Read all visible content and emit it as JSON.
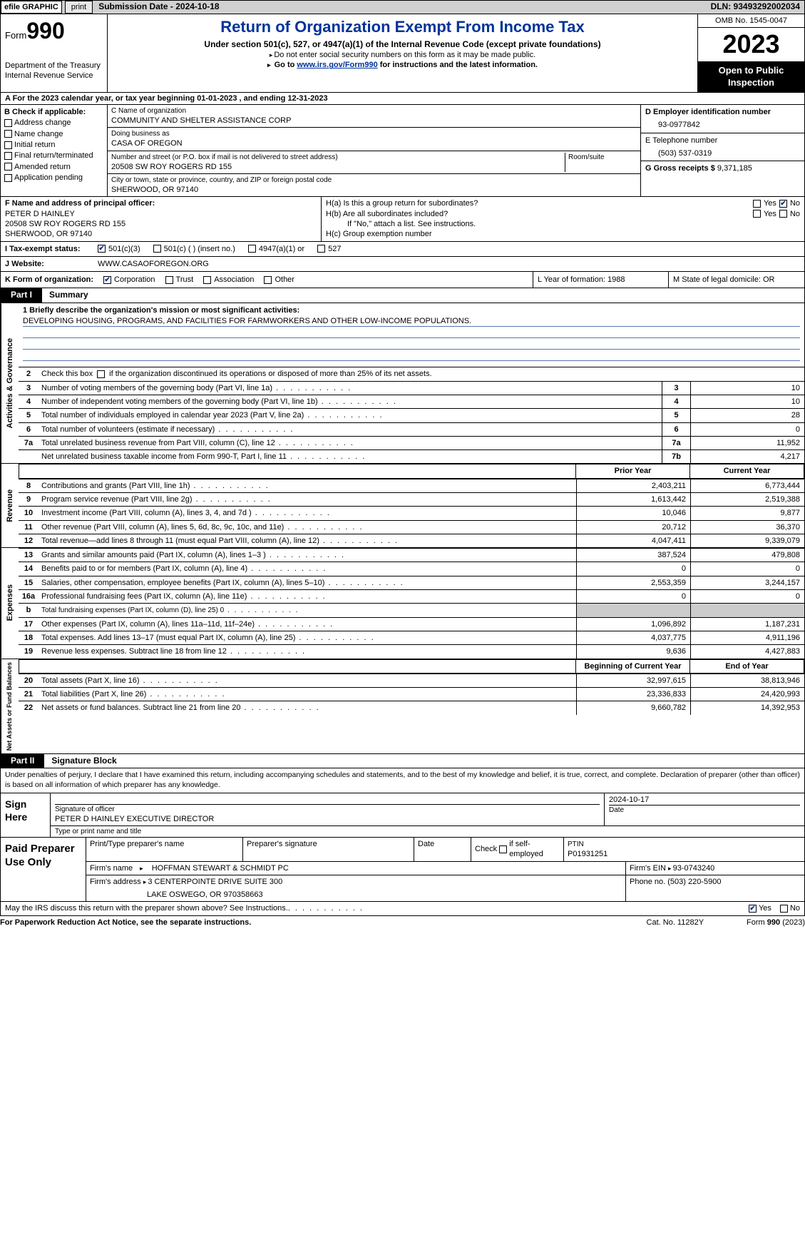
{
  "colors": {
    "title_blue": "#003399",
    "underline": "#5577aa",
    "black": "#000000",
    "gray_bg": "#d0d0d0",
    "cell_gray": "#cccccc"
  },
  "topbar": {
    "efile": "efile GRAPHIC",
    "print": "print",
    "submission": "Submission Date - 2024-10-18",
    "dln": "DLN: 93493292002034"
  },
  "header": {
    "form_label": "Form",
    "form_number": "990",
    "dept": "Department of the Treasury\nInternal Revenue Service",
    "title": "Return of Organization Exempt From Income Tax",
    "sub1": "Under section 501(c), 527, or 4947(a)(1) of the Internal Revenue Code (except private foundations)",
    "sub2": "Do not enter social security numbers on this form as it may be made public.",
    "goto_prefix": "Go to ",
    "goto_link": "www.irs.gov/Form990",
    "goto_suffix": " for instructions and the latest information.",
    "omb": "OMB No. 1545-0047",
    "year": "2023",
    "open_public": "Open to Public Inspection"
  },
  "section_a": "A For the 2023 calendar year, or tax year beginning 01-01-2023   , and ending 12-31-2023",
  "col_b": {
    "label": "B Check if applicable:",
    "items": [
      "Address change",
      "Name change",
      "Initial return",
      "Final return/terminated",
      "Amended return",
      "Application pending"
    ]
  },
  "col_c": {
    "name_label": "C Name of organization",
    "name": "COMMUNITY AND SHELTER ASSISTANCE CORP",
    "dba_label": "Doing business as",
    "dba": "CASA OF OREGON",
    "street_label": "Number and street (or P.O. box if mail is not delivered to street address)",
    "street": "20508 SW ROY ROGERS RD 155",
    "room_label": "Room/suite",
    "city_label": "City or town, state or province, country, and ZIP or foreign postal code",
    "city": "SHERWOOD, OR  97140"
  },
  "col_d": {
    "ein_label": "D Employer identification number",
    "ein": "93-0977842",
    "phone_label": "E Telephone number",
    "phone": "(503) 537-0319",
    "gross_label": "G Gross receipts $ ",
    "gross": "9,371,185"
  },
  "f_block": {
    "label": "F  Name and address of principal officer:",
    "name": "PETER D HAINLEY",
    "street": "20508 SW ROY ROGERS RD 155",
    "city": "SHERWOOD, OR  97140"
  },
  "h_block": {
    "ha": "H(a)  Is this a group return for subordinates?",
    "hb": "H(b)  Are all subordinates included?",
    "hb_note": "If \"No,\" attach a list. See instructions.",
    "hc": "H(c)  Group exemption number ",
    "yes": "Yes",
    "no": "No"
  },
  "i_row": {
    "label": "I   Tax-exempt status:",
    "opts": [
      "501(c)(3)",
      "501(c) (  ) (insert no.)",
      "4947(a)(1) or",
      "527"
    ]
  },
  "j_row": {
    "label": "J   Website:",
    "value": " WWW.CASAOFOREGON.ORG"
  },
  "k_row": {
    "label": "K Form of organization:",
    "opts": [
      "Corporation",
      "Trust",
      "Association",
      "Other"
    ],
    "l": "L Year of formation: 1988",
    "m": "M State of legal domicile: OR"
  },
  "part1": {
    "tag": "Part I",
    "title": "Summary"
  },
  "mission": {
    "label": "1   Briefly describe the organization's mission or most significant activities:",
    "text": "DEVELOPING HOUSING, PROGRAMS, AND FACILITIES FOR FARMWORKERS AND OTHER LOW-INCOME POPULATIONS."
  },
  "line2": "Check this box      if the organization discontinued its operations or disposed of more than 25% of its net assets.",
  "vtabs": {
    "gov": "Activities & Governance",
    "rev": "Revenue",
    "exp": "Expenses",
    "net": "Net Assets or Fund Balances"
  },
  "col_headers": {
    "prior": "Prior Year",
    "current": "Current Year",
    "begin": "Beginning of Current Year",
    "end": "End of Year"
  },
  "gov_rows": [
    {
      "n": "3",
      "d": "Number of voting members of the governing body (Part VI, line 1a)",
      "c1": "3",
      "c2": "10"
    },
    {
      "n": "4",
      "d": "Number of independent voting members of the governing body (Part VI, line 1b)",
      "c1": "4",
      "c2": "10"
    },
    {
      "n": "5",
      "d": "Total number of individuals employed in calendar year 2023 (Part V, line 2a)",
      "c1": "5",
      "c2": "28"
    },
    {
      "n": "6",
      "d": "Total number of volunteers (estimate if necessary)",
      "c1": "6",
      "c2": "0"
    },
    {
      "n": "7a",
      "d": "Total unrelated business revenue from Part VIII, column (C), line 12",
      "c1": "7a",
      "c2": "11,952"
    },
    {
      "n": "",
      "d": "Net unrelated business taxable income from Form 990-T, Part I, line 11",
      "c1": "7b",
      "c2": "4,217"
    }
  ],
  "rev_rows": [
    {
      "n": "8",
      "d": "Contributions and grants (Part VIII, line 1h)",
      "p": "2,403,211",
      "c": "6,773,444"
    },
    {
      "n": "9",
      "d": "Program service revenue (Part VIII, line 2g)",
      "p": "1,613,442",
      "c": "2,519,388"
    },
    {
      "n": "10",
      "d": "Investment income (Part VIII, column (A), lines 3, 4, and 7d )",
      "p": "10,046",
      "c": "9,877"
    },
    {
      "n": "11",
      "d": "Other revenue (Part VIII, column (A), lines 5, 6d, 8c, 9c, 10c, and 11e)",
      "p": "20,712",
      "c": "36,370"
    },
    {
      "n": "12",
      "d": "Total revenue—add lines 8 through 11 (must equal Part VIII, column (A), line 12)",
      "p": "4,047,411",
      "c": "9,339,079"
    }
  ],
  "exp_rows": [
    {
      "n": "13",
      "d": "Grants and similar amounts paid (Part IX, column (A), lines 1–3 )",
      "p": "387,524",
      "c": "479,808"
    },
    {
      "n": "14",
      "d": "Benefits paid to or for members (Part IX, column (A), line 4)",
      "p": "0",
      "c": "0"
    },
    {
      "n": "15",
      "d": "Salaries, other compensation, employee benefits (Part IX, column (A), lines 5–10)",
      "p": "2,553,359",
      "c": "3,244,157"
    },
    {
      "n": "16a",
      "d": "Professional fundraising fees (Part IX, column (A), line 11e)",
      "p": "0",
      "c": "0"
    },
    {
      "n": "b",
      "d": "Total fundraising expenses (Part IX, column (D), line 25) 0",
      "p": "",
      "c": "",
      "gray": true,
      "small": true
    },
    {
      "n": "17",
      "d": "Other expenses (Part IX, column (A), lines 11a–11d, 11f–24e)",
      "p": "1,096,892",
      "c": "1,187,231"
    },
    {
      "n": "18",
      "d": "Total expenses. Add lines 13–17 (must equal Part IX, column (A), line 25)",
      "p": "4,037,775",
      "c": "4,911,196"
    },
    {
      "n": "19",
      "d": "Revenue less expenses. Subtract line 18 from line 12",
      "p": "9,636",
      "c": "4,427,883"
    }
  ],
  "net_rows": [
    {
      "n": "20",
      "d": "Total assets (Part X, line 16)",
      "p": "32,997,615",
      "c": "38,813,946"
    },
    {
      "n": "21",
      "d": "Total liabilities (Part X, line 26)",
      "p": "23,336,833",
      "c": "24,420,993"
    },
    {
      "n": "22",
      "d": "Net assets or fund balances. Subtract line 21 from line 20",
      "p": "9,660,782",
      "c": "14,392,953"
    }
  ],
  "part2": {
    "tag": "Part II",
    "title": "Signature Block"
  },
  "sig": {
    "declaration": "Under penalties of perjury, I declare that I have examined this return, including accompanying schedules and statements, and to the best of my knowledge and belief, it is true, correct, and complete. Declaration of preparer (other than officer) is based on all information of which preparer has any knowledge.",
    "sign_here": "Sign Here",
    "date": "2024-10-17",
    "sig_officer": "Signature of officer",
    "officer": "PETER D HAINLEY  EXECUTIVE DIRECTOR",
    "type_name": "Type or print name and title",
    "date_label": "Date"
  },
  "paid": {
    "label": "Paid Preparer Use Only",
    "h1": "Print/Type preparer's name",
    "h2": "Preparer's signature",
    "h3": "Date",
    "h4": "Check      if self-employed",
    "h5_label": "PTIN",
    "h5": "P01931251",
    "firm_name_l": "Firm's name",
    "firm_name": "HOFFMAN STEWART & SCHMIDT PC",
    "firm_ein_l": "Firm's EIN",
    "firm_ein": "93-0743240",
    "firm_addr_l": "Firm's address",
    "firm_addr1": "3 CENTERPOINTE DRIVE SUITE 300",
    "firm_addr2": "LAKE OSWEGO, OR  970358663",
    "phone_l": "Phone no.",
    "phone": "(503) 220-5900"
  },
  "discuss": {
    "q": "May the IRS discuss this return with the preparer shown above? See Instructions.",
    "yes": "Yes",
    "no": "No"
  },
  "footer": {
    "left": "For Paperwork Reduction Act Notice, see the separate instructions.",
    "mid": "Cat. No. 11282Y",
    "right_pre": "Form ",
    "right_form": "990",
    "right_suf": " (2023)"
  }
}
